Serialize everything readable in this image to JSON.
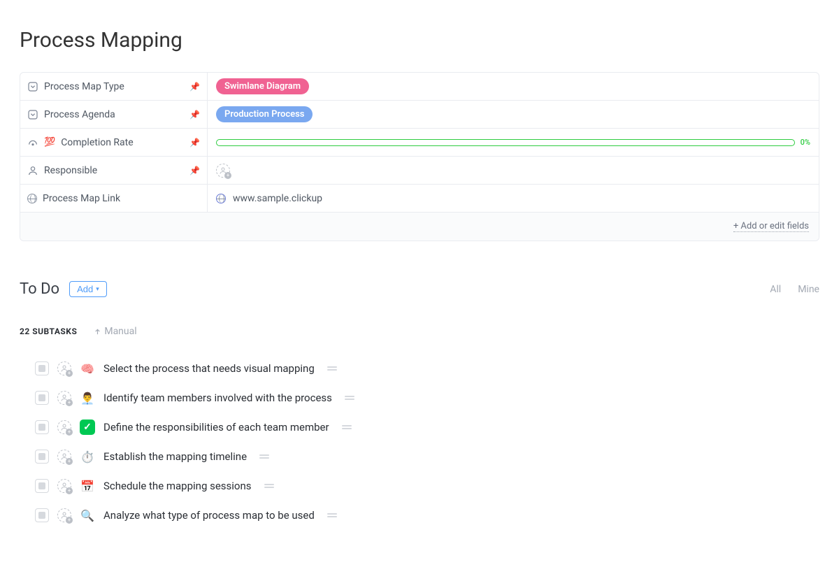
{
  "page_title": "Process Mapping",
  "fields": {
    "process_map_type": {
      "label": "Process Map Type",
      "pinned": true,
      "tag_text": "Swimlane Diagram",
      "tag_color": "#f06292"
    },
    "process_agenda": {
      "label": "Process Agenda",
      "pinned": true,
      "tag_text": "Production Process",
      "tag_color": "#7aa8f0"
    },
    "completion_rate": {
      "label": "Completion Rate",
      "pinned": true,
      "percent_label": "0%",
      "bar_border_color": "#2ecc40"
    },
    "responsible": {
      "label": "Responsible",
      "pinned": true
    },
    "process_map_link": {
      "label": "Process Map Link",
      "pinned": false,
      "url_text": "www.sample.clickup"
    }
  },
  "fields_footer": "+ Add or edit fields",
  "todo": {
    "heading": "To Do",
    "add_label": "Add",
    "tabs": {
      "all": "All",
      "mine": "Mine"
    }
  },
  "subtasks_header": {
    "count_label": "22 SUBTASKS",
    "sort_label": "Manual"
  },
  "tasks": [
    {
      "emoji": "🧠",
      "emoji_type": "plain",
      "title": "Select the process that needs visual mapping"
    },
    {
      "emoji": "👨‍💼",
      "emoji_type": "plain",
      "title": "Identify team members involved with the process"
    },
    {
      "emoji": "✓",
      "emoji_type": "green-check",
      "title": "Define the responsibilities of each team member"
    },
    {
      "emoji": "⏱️",
      "emoji_type": "plain",
      "title": "Establish the mapping timeline"
    },
    {
      "emoji": "📅",
      "emoji_type": "plain",
      "title": "Schedule the mapping sessions"
    },
    {
      "emoji": "🔍",
      "emoji_type": "plain",
      "title": "Analyze what type of process map to be used"
    }
  ],
  "colors": {
    "pin": "#348cf6",
    "link": "#4f9cf9"
  }
}
